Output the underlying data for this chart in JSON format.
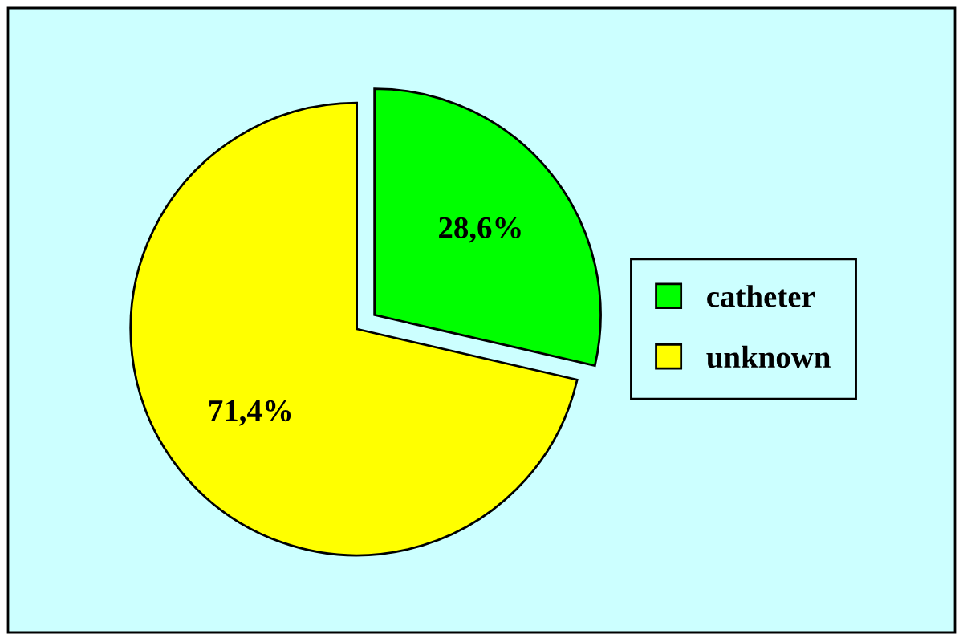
{
  "chart_data": {
    "type": "pie",
    "categories": [
      "catheter",
      "unknown"
    ],
    "values": [
      28.6,
      71.4
    ],
    "colors": [
      "#00ff00",
      "#ffff00"
    ],
    "value_labels": [
      "28,6%",
      "71,4%"
    ],
    "legend": "right"
  }
}
